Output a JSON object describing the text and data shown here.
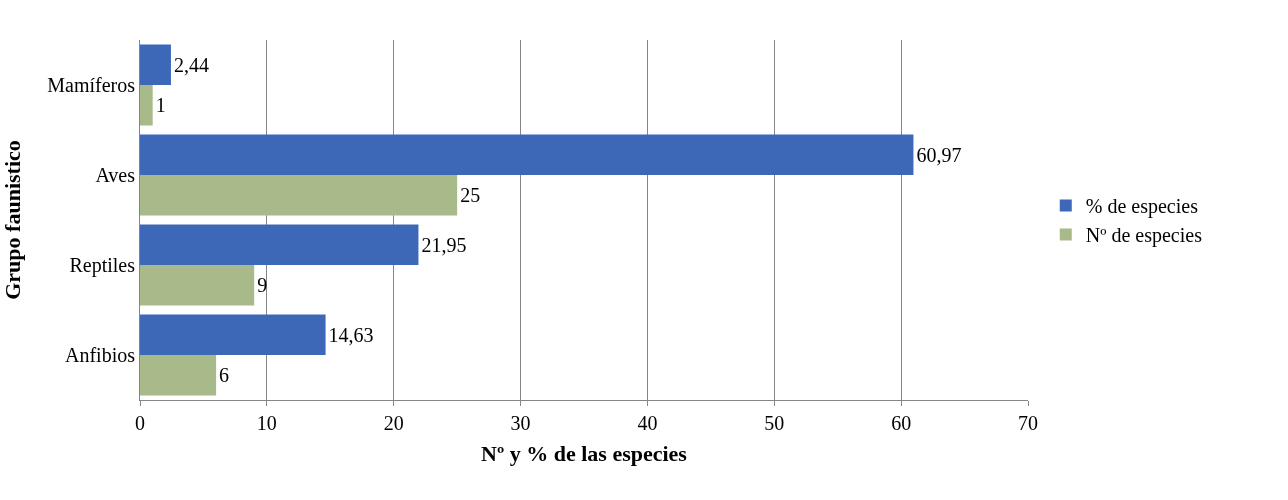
{
  "chart_data": {
    "type": "bar",
    "orientation": "horizontal",
    "xlabel": "Nº y % de las especies",
    "ylabel": "Grupo faunistico",
    "categories": [
      "Mamíferos",
      "Aves",
      "Reptiles",
      "Anfibios"
    ],
    "series": [
      {
        "name": "% de especies",
        "color": "#3d68b8",
        "values": [
          2.44,
          60.97,
          21.95,
          14.63
        ],
        "value_labels": [
          "2,44",
          "60,97",
          "21,95",
          "14,63"
        ]
      },
      {
        "name": "Nº de especies",
        "color": "#a8b98a",
        "values": [
          1,
          25,
          9,
          6
        ],
        "value_labels": [
          "1",
          "25",
          "9",
          "6"
        ]
      }
    ],
    "xlim": [
      0,
      70
    ],
    "xticks": [
      0,
      10,
      20,
      30,
      40,
      50,
      60,
      70
    ],
    "grid": "x",
    "legend": "right"
  }
}
